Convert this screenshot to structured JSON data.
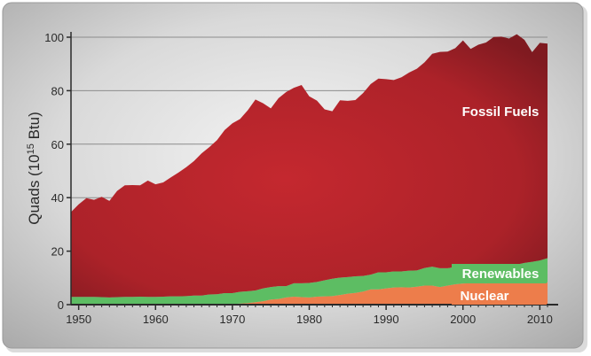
{
  "chart_data": {
    "type": "area",
    "stacked": true,
    "ylabel": "Quads (10",
    "ylabel_sup": "15",
    "ylabel_end": " Btu)",
    "xlim": [
      1949,
      2011
    ],
    "ylim": [
      0,
      100
    ],
    "x_ticks": [
      1950,
      1960,
      1970,
      1980,
      1990,
      2000,
      2010
    ],
    "y_ticks": [
      0,
      20,
      40,
      60,
      80,
      100
    ],
    "x": [
      1949,
      1950,
      1951,
      1952,
      1953,
      1954,
      1955,
      1956,
      1957,
      1958,
      1959,
      1960,
      1961,
      1962,
      1963,
      1964,
      1965,
      1966,
      1967,
      1968,
      1969,
      1970,
      1971,
      1972,
      1973,
      1974,
      1975,
      1976,
      1977,
      1978,
      1979,
      1980,
      1981,
      1982,
      1983,
      1984,
      1985,
      1986,
      1987,
      1988,
      1989,
      1990,
      1991,
      1992,
      1993,
      1994,
      1995,
      1996,
      1997,
      1998,
      1999,
      2000,
      2001,
      2002,
      2003,
      2004,
      2005,
      2006,
      2007,
      2008,
      2009,
      2010,
      2011
    ],
    "series": [
      {
        "name": "Nuclear",
        "color": "#ed7d4b",
        "values": [
          0,
          0,
          0,
          0,
          0,
          0,
          0,
          0,
          0,
          0,
          0,
          0,
          0,
          0,
          0,
          0,
          0,
          0,
          0.1,
          0.1,
          0.2,
          0.2,
          0.4,
          0.6,
          0.9,
          1.3,
          1.9,
          2.1,
          2.7,
          3.0,
          2.8,
          2.7,
          3.0,
          3.1,
          3.2,
          3.6,
          4.1,
          4.4,
          4.9,
          5.7,
          5.7,
          6.1,
          6.4,
          6.5,
          6.4,
          6.7,
          7.1,
          7.1,
          6.6,
          7.1,
          7.6,
          7.9,
          8.0,
          8.1,
          7.9,
          8.2,
          8.2,
          8.2,
          8.5,
          8.4,
          8.4,
          8.4,
          8.3
        ]
      },
      {
        "name": "Renewables",
        "color": "#5dbd63",
        "values": [
          2.9,
          2.9,
          2.9,
          2.9,
          2.8,
          2.7,
          2.8,
          2.9,
          2.9,
          3.0,
          2.9,
          2.9,
          3.0,
          3.1,
          3.1,
          3.2,
          3.4,
          3.4,
          3.7,
          3.8,
          4.1,
          4.1,
          4.4,
          4.4,
          4.4,
          4.8,
          4.7,
          4.8,
          4.2,
          5.0,
          5.2,
          5.4,
          5.5,
          6.0,
          6.5,
          6.5,
          6.2,
          6.2,
          5.8,
          5.5,
          6.4,
          6.0,
          6.0,
          5.9,
          6.3,
          6.1,
          6.6,
          7.1,
          7.0,
          6.5,
          6.5,
          6.1,
          5.2,
          5.7,
          6.0,
          6.1,
          6.2,
          6.6,
          6.5,
          7.2,
          7.6,
          8.1,
          9.1
        ]
      },
      {
        "name": "Fossil Fuels",
        "color": "#b9262f",
        "values": [
          31.7,
          34.6,
          36.9,
          36.3,
          37.5,
          36.1,
          39.7,
          41.7,
          41.8,
          41.6,
          43.5,
          42.1,
          42.7,
          44.5,
          46.3,
          48.2,
          50.3,
          53.2,
          55.1,
          57.6,
          61.0,
          63.5,
          64.6,
          67.7,
          71.4,
          69.2,
          66.8,
          70.3,
          72.6,
          73.1,
          74.1,
          69.8,
          67.8,
          63.9,
          62.6,
          66.3,
          65.9,
          65.9,
          68.4,
          71.3,
          72.4,
          72.2,
          71.6,
          72.6,
          74.1,
          75.4,
          76.9,
          79.6,
          80.9,
          81.0,
          81.8,
          84.8,
          82.4,
          83.4,
          84.1,
          85.8,
          85.8,
          84.7,
          86.1,
          83.4,
          78.4,
          81.4,
          80.2
        ]
      }
    ]
  },
  "labels": {
    "fossil": "Fossil Fuels",
    "renewables": "Renewables",
    "nuclear": "Nuclear"
  },
  "colors": {
    "frame_bg": "#c8c8c8",
    "axis": "#2a2a2a",
    "grid": "#8c8c8c",
    "fossil_dark": "#7a1a1f",
    "fossil_mid": "#bf272f",
    "renewables_dark": "#3d8f45",
    "nuclear_dark": "#d35a2a"
  }
}
